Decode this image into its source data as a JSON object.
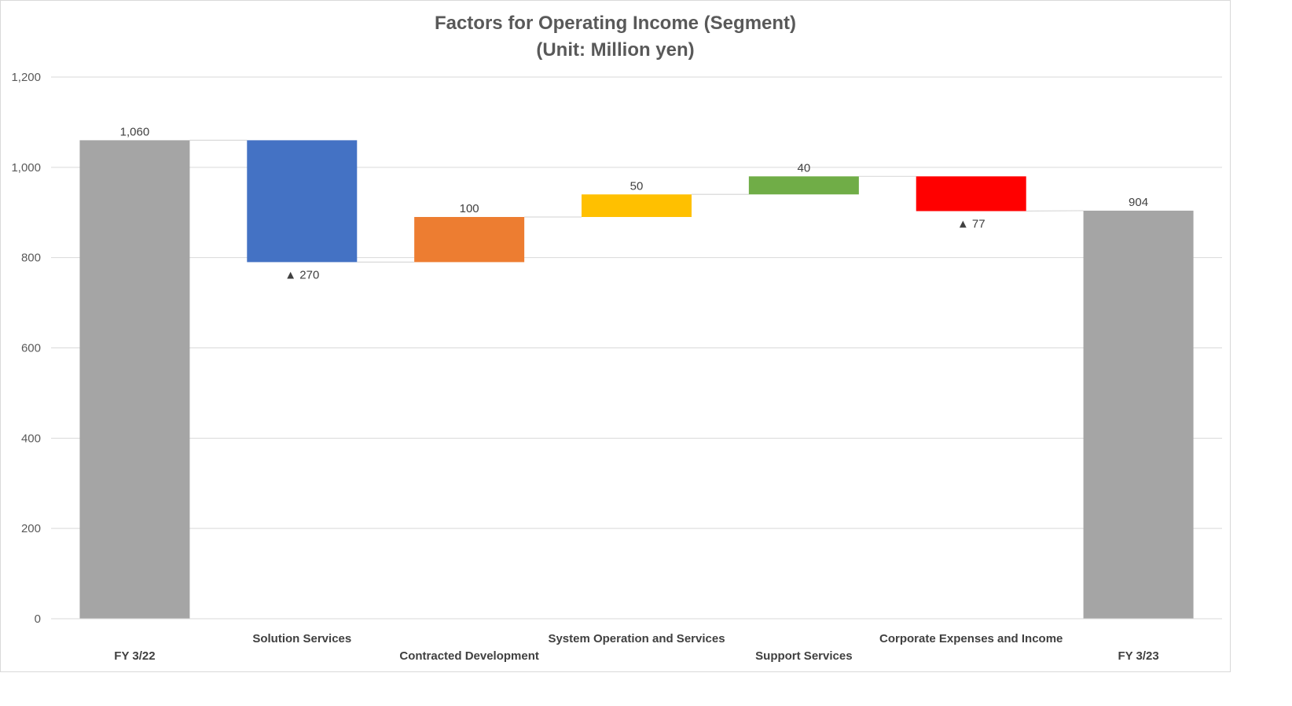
{
  "chart_data": {
    "type": "bar",
    "subtype": "waterfall",
    "title": "Factors for Operating Income (Segment)",
    "subtitle": "(Unit: Million yen)",
    "categories": [
      "FY 3/22",
      "Solution Services",
      "Contracted Development",
      "System Operation and Services",
      "Support Services",
      "Corporate Expenses and Income",
      "FY 3/23"
    ],
    "values": [
      1060,
      -270,
      100,
      50,
      40,
      -77,
      904
    ],
    "kinds": [
      "total",
      "delta",
      "delta",
      "delta",
      "delta",
      "delta",
      "total"
    ],
    "data_labels": [
      "1,060",
      "▲ 270",
      "100",
      "50",
      "40",
      "▲ 77",
      "904"
    ],
    "colors": [
      "#a5a5a5",
      "#4472c4",
      "#ed7d31",
      "#ffc000",
      "#70ad47",
      "#ff0000",
      "#a5a5a5"
    ],
    "connector_color": "#d9d9d9",
    "ylim": [
      0,
      1200
    ],
    "yticks": [
      0,
      200,
      400,
      600,
      800,
      1000,
      1200
    ],
    "ytick_labels": [
      "0",
      "200",
      "400",
      "600",
      "800",
      "1,000",
      "1,200"
    ],
    "grid": true,
    "legend": "none",
    "xlabel": "",
    "ylabel": ""
  }
}
